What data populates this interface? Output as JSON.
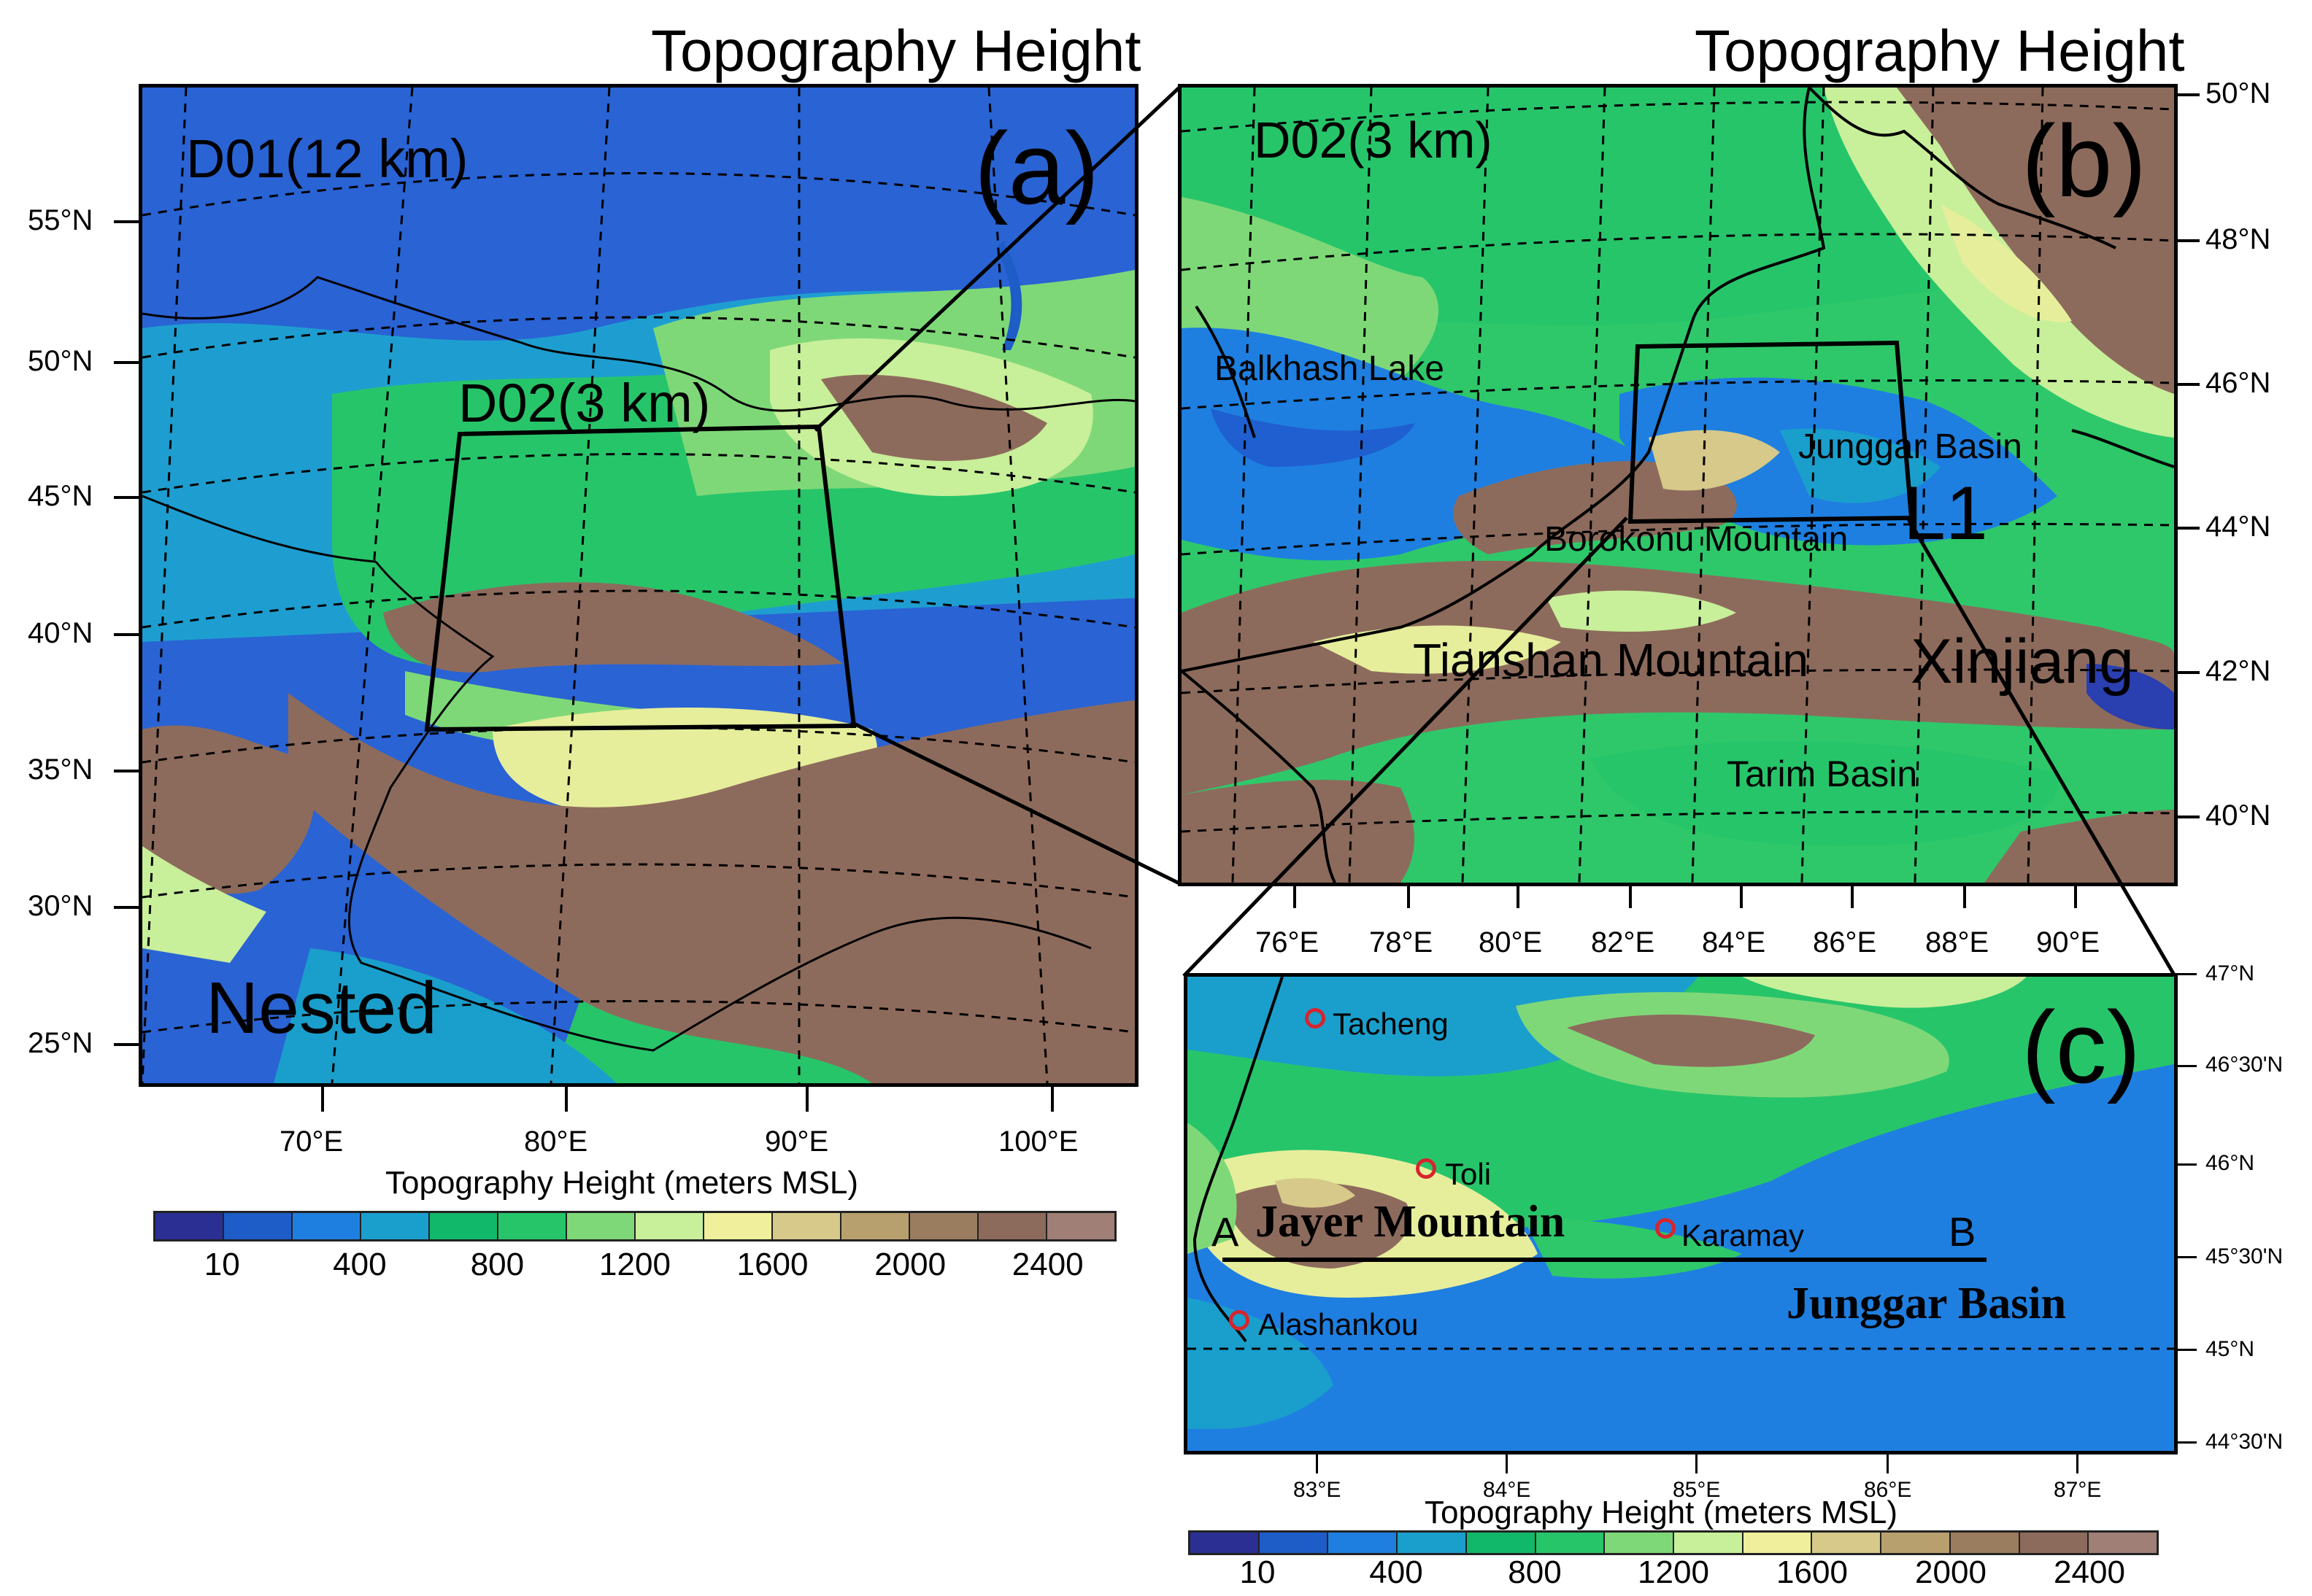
{
  "panels": {
    "a": {
      "title": "Topography Height",
      "domain_label": "D01(12 km)",
      "letter": "(a)",
      "nested_box_label": "D02(3 km)",
      "corner_label": "Nested",
      "lat_labels": [
        "55°N",
        "50°N",
        "45°N",
        "40°N",
        "35°N",
        "30°N",
        "25°N"
      ],
      "lon_labels": [
        "70°E",
        "80°E",
        "90°E",
        "100°E"
      ]
    },
    "b": {
      "title": "Topography Height",
      "domain_label": "D02(3 km)",
      "letter": "(b)",
      "box_label": "L1",
      "places": {
        "balkhash": "Balkhash Lake",
        "junggar": "Junggar Basin",
        "borokonu": "Borokonu Mountain",
        "tianshan": "Tianshan Mountain",
        "xinjiang": "Xinjiang",
        "tarim": "Tarim Basin"
      },
      "lat_labels": [
        "50°N",
        "48°N",
        "46°N",
        "44°N",
        "42°N",
        "40°N"
      ],
      "lon_labels": [
        "76°E",
        "78°E",
        "80°E",
        "82°E",
        "84°E",
        "86°E",
        "88°E",
        "90°E"
      ]
    },
    "c": {
      "letter": "(c)",
      "stations": [
        "Tacheng",
        "Toli",
        "Karamay",
        "Alashankou"
      ],
      "mountain": "Jayer Mountain",
      "basin": "Junggar Basin",
      "point_a": "A",
      "point_b": "B",
      "lat_labels": [
        "47°N",
        "46°30'N",
        "46°N",
        "45°30'N",
        "45°N",
        "44°30'N"
      ],
      "lon_labels": [
        "83°E",
        "84°E",
        "85°E",
        "86°E",
        "87°E"
      ]
    }
  },
  "colorbar": {
    "title": "Topography Height (meters MSL)",
    "labels": [
      "10",
      "400",
      "800",
      "1200",
      "1600",
      "2000",
      "2400"
    ],
    "colors": [
      "#2b2f94",
      "#1e5cc8",
      "#1f7fe0",
      "#1a9fcc",
      "#12b86a",
      "#27c56a",
      "#7fd878",
      "#c8ef9a",
      "#efef9c",
      "#d6c98a",
      "#b8a06e",
      "#9a7c5e",
      "#8c6a5c",
      "#a07f76"
    ]
  },
  "colors": {
    "low": "#2f6fe0",
    "water": "#1f80d8",
    "green": "#2ec86a",
    "light_green": "#a6e48e",
    "yellow": "#e6ee9c",
    "brown": "#8d6b5c",
    "marker": "#d6252e"
  }
}
